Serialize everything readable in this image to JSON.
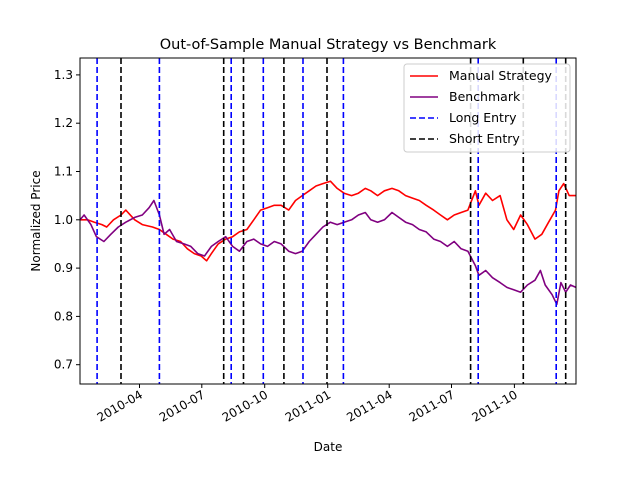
{
  "chart_data": {
    "type": "line",
    "title": "Out-of-Sample Manual Strategy vs Benchmark",
    "xlabel": "Date",
    "ylabel": "Normalized Price",
    "xlim": [
      "2010-01-04",
      "2011-12-30"
    ],
    "ylim": [
      0.66,
      1.335
    ],
    "x_ticks": [
      {
        "date": "2010-04-01",
        "label": "2010-04"
      },
      {
        "date": "2010-07-01",
        "label": "2010-07"
      },
      {
        "date": "2010-10-01",
        "label": "2010-10"
      },
      {
        "date": "2011-01-01",
        "label": "2011-01"
      },
      {
        "date": "2011-04-01",
        "label": "2011-04"
      },
      {
        "date": "2011-07-01",
        "label": "2011-07"
      },
      {
        "date": "2011-10-01",
        "label": "2011-10"
      }
    ],
    "y_ticks": [
      0.7,
      0.8,
      0.9,
      1.0,
      1.1,
      1.2,
      1.3
    ],
    "legend_position": "top-right",
    "series": [
      {
        "name": "Manual Strategy",
        "color": "#ff0000",
        "points": [
          [
            "2010-01-04",
            1.0
          ],
          [
            "2010-01-15",
            1.0
          ],
          [
            "2010-01-25",
            0.995
          ],
          [
            "2010-02-05",
            0.99
          ],
          [
            "2010-02-12",
            0.985
          ],
          [
            "2010-02-22",
            1.0
          ],
          [
            "2010-03-05",
            1.01
          ],
          [
            "2010-03-12",
            1.02
          ],
          [
            "2010-03-25",
            1.0
          ],
          [
            "2010-04-05",
            0.99
          ],
          [
            "2010-04-20",
            0.985
          ],
          [
            "2010-04-30",
            0.98
          ],
          [
            "2010-05-10",
            0.97
          ],
          [
            "2010-05-20",
            0.96
          ],
          [
            "2010-05-31",
            0.955
          ],
          [
            "2010-06-10",
            0.94
          ],
          [
            "2010-06-20",
            0.93
          ],
          [
            "2010-06-30",
            0.925
          ],
          [
            "2010-07-08",
            0.915
          ],
          [
            "2010-07-15",
            0.93
          ],
          [
            "2010-07-25",
            0.95
          ],
          [
            "2010-08-05",
            0.96
          ],
          [
            "2010-08-15",
            0.965
          ],
          [
            "2010-08-25",
            0.975
          ],
          [
            "2010-09-05",
            0.98
          ],
          [
            "2010-09-15",
            1.0
          ],
          [
            "2010-09-25",
            1.02
          ],
          [
            "2010-10-05",
            1.025
          ],
          [
            "2010-10-15",
            1.03
          ],
          [
            "2010-10-25",
            1.03
          ],
          [
            "2010-11-05",
            1.02
          ],
          [
            "2010-11-15",
            1.04
          ],
          [
            "2010-11-25",
            1.05
          ],
          [
            "2010-12-05",
            1.06
          ],
          [
            "2010-12-15",
            1.07
          ],
          [
            "2010-12-25",
            1.075
          ],
          [
            "2011-01-05",
            1.08
          ],
          [
            "2011-01-15",
            1.065
          ],
          [
            "2011-01-25",
            1.055
          ],
          [
            "2011-02-05",
            1.05
          ],
          [
            "2011-02-15",
            1.055
          ],
          [
            "2011-02-25",
            1.065
          ],
          [
            "2011-03-05",
            1.06
          ],
          [
            "2011-03-15",
            1.05
          ],
          [
            "2011-03-25",
            1.06
          ],
          [
            "2011-04-05",
            1.065
          ],
          [
            "2011-04-15",
            1.06
          ],
          [
            "2011-04-25",
            1.05
          ],
          [
            "2011-05-05",
            1.045
          ],
          [
            "2011-05-15",
            1.04
          ],
          [
            "2011-05-25",
            1.03
          ],
          [
            "2011-06-05",
            1.02
          ],
          [
            "2011-06-15",
            1.01
          ],
          [
            "2011-06-25",
            1.0
          ],
          [
            "2011-07-05",
            1.01
          ],
          [
            "2011-07-15",
            1.015
          ],
          [
            "2011-07-25",
            1.02
          ],
          [
            "2011-08-05",
            1.06
          ],
          [
            "2011-08-10",
            1.03
          ],
          [
            "2011-08-20",
            1.055
          ],
          [
            "2011-08-30",
            1.04
          ],
          [
            "2011-09-10",
            1.05
          ],
          [
            "2011-09-20",
            1.0
          ],
          [
            "2011-09-30",
            0.98
          ],
          [
            "2011-10-10",
            1.01
          ],
          [
            "2011-10-20",
            0.99
          ],
          [
            "2011-10-31",
            0.96
          ],
          [
            "2011-11-10",
            0.97
          ],
          [
            "2011-11-20",
            0.995
          ],
          [
            "2011-11-30",
            1.02
          ],
          [
            "2011-12-05",
            1.06
          ],
          [
            "2011-12-12",
            1.075
          ],
          [
            "2011-12-20",
            1.05
          ],
          [
            "2011-12-30",
            1.05
          ]
        ]
      },
      {
        "name": "Benchmark",
        "color": "#800080",
        "points": [
          [
            "2010-01-04",
            1.0
          ],
          [
            "2010-01-10",
            1.01
          ],
          [
            "2010-01-20",
            0.99
          ],
          [
            "2010-01-28",
            0.965
          ],
          [
            "2010-02-08",
            0.955
          ],
          [
            "2010-02-18",
            0.97
          ],
          [
            "2010-03-01",
            0.985
          ],
          [
            "2010-03-12",
            0.995
          ],
          [
            "2010-03-25",
            1.005
          ],
          [
            "2010-04-05",
            1.01
          ],
          [
            "2010-04-15",
            1.025
          ],
          [
            "2010-04-22",
            1.04
          ],
          [
            "2010-04-30",
            1.01
          ],
          [
            "2010-05-07",
            0.97
          ],
          [
            "2010-05-15",
            0.98
          ],
          [
            "2010-05-25",
            0.955
          ],
          [
            "2010-06-05",
            0.95
          ],
          [
            "2010-06-15",
            0.945
          ],
          [
            "2010-06-25",
            0.93
          ],
          [
            "2010-07-05",
            0.925
          ],
          [
            "2010-07-15",
            0.945
          ],
          [
            "2010-07-25",
            0.955
          ],
          [
            "2010-08-05",
            0.965
          ],
          [
            "2010-08-15",
            0.945
          ],
          [
            "2010-08-25",
            0.935
          ],
          [
            "2010-09-05",
            0.955
          ],
          [
            "2010-09-15",
            0.96
          ],
          [
            "2010-09-25",
            0.95
          ],
          [
            "2010-10-05",
            0.945
          ],
          [
            "2010-10-15",
            0.955
          ],
          [
            "2010-10-25",
            0.95
          ],
          [
            "2010-11-05",
            0.935
          ],
          [
            "2010-11-15",
            0.93
          ],
          [
            "2010-11-25",
            0.935
          ],
          [
            "2010-12-05",
            0.955
          ],
          [
            "2010-12-15",
            0.97
          ],
          [
            "2010-12-25",
            0.985
          ],
          [
            "2011-01-05",
            0.995
          ],
          [
            "2011-01-15",
            0.99
          ],
          [
            "2011-01-25",
            0.995
          ],
          [
            "2011-02-05",
            1.0
          ],
          [
            "2011-02-15",
            1.01
          ],
          [
            "2011-02-25",
            1.015
          ],
          [
            "2011-03-05",
            1.0
          ],
          [
            "2011-03-15",
            0.995
          ],
          [
            "2011-03-25",
            1.0
          ],
          [
            "2011-04-05",
            1.015
          ],
          [
            "2011-04-15",
            1.005
          ],
          [
            "2011-04-25",
            0.995
          ],
          [
            "2011-05-05",
            0.99
          ],
          [
            "2011-05-15",
            0.98
          ],
          [
            "2011-05-25",
            0.975
          ],
          [
            "2011-06-05",
            0.96
          ],
          [
            "2011-06-15",
            0.955
          ],
          [
            "2011-06-25",
            0.945
          ],
          [
            "2011-07-05",
            0.955
          ],
          [
            "2011-07-15",
            0.94
          ],
          [
            "2011-07-25",
            0.935
          ],
          [
            "2011-08-05",
            0.905
          ],
          [
            "2011-08-10",
            0.885
          ],
          [
            "2011-08-20",
            0.895
          ],
          [
            "2011-08-30",
            0.88
          ],
          [
            "2011-09-10",
            0.87
          ],
          [
            "2011-09-20",
            0.86
          ],
          [
            "2011-09-30",
            0.855
          ],
          [
            "2011-10-10",
            0.85
          ],
          [
            "2011-10-20",
            0.865
          ],
          [
            "2011-10-31",
            0.875
          ],
          [
            "2011-11-08",
            0.895
          ],
          [
            "2011-11-15",
            0.865
          ],
          [
            "2011-11-25",
            0.845
          ],
          [
            "2011-12-02",
            0.825
          ],
          [
            "2011-12-08",
            0.87
          ],
          [
            "2011-12-15",
            0.85
          ],
          [
            "2011-12-22",
            0.865
          ],
          [
            "2011-12-30",
            0.86
          ]
        ]
      }
    ],
    "vlines": [
      {
        "name": "Long Entry",
        "color": "#0000ff",
        "style": "dashed",
        "dates": [
          "2010-01-29",
          "2010-04-30",
          "2010-08-13",
          "2010-09-29",
          "2010-11-26",
          "2011-01-24",
          "2011-08-09",
          "2011-12-01"
        ]
      },
      {
        "name": "Short Entry",
        "color": "#000000",
        "style": "dashed",
        "dates": [
          "2010-03-05",
          "2010-08-02",
          "2010-08-31",
          "2010-10-29",
          "2010-12-31",
          "2011-07-29",
          "2011-10-14",
          "2011-12-15"
        ]
      }
    ],
    "legend": [
      {
        "label": "Manual Strategy",
        "color": "#ff0000",
        "style": "solid"
      },
      {
        "label": "Benchmark",
        "color": "#800080",
        "style": "solid"
      },
      {
        "label": "Long Entry",
        "color": "#0000ff",
        "style": "dashed"
      },
      {
        "label": "Short Entry",
        "color": "#000000",
        "style": "dashed"
      }
    ]
  }
}
